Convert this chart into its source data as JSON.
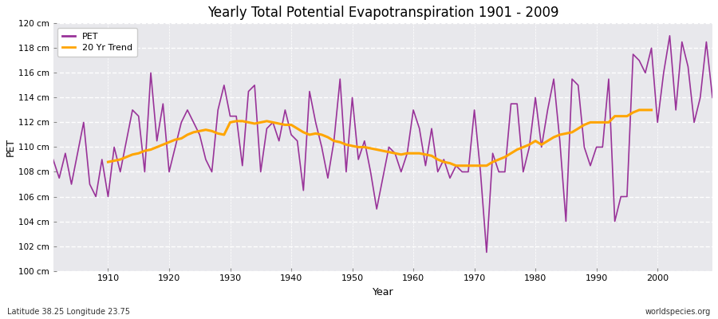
{
  "title": "Yearly Total Potential Evapotranspiration 1901 - 2009",
  "xlabel": "Year",
  "ylabel": "PET",
  "footnote_left": "Latitude 38.25 Longitude 23.75",
  "footnote_right": "worldspecies.org",
  "ylim": [
    100,
    120
  ],
  "ytick_labels": [
    "100 cm",
    "102 cm",
    "104 cm",
    "106 cm",
    "108 cm",
    "110 cm",
    "112 cm",
    "114 cm",
    "116 cm",
    "118 cm",
    "120 cm"
  ],
  "ytick_values": [
    100,
    102,
    104,
    106,
    108,
    110,
    112,
    114,
    116,
    118,
    120
  ],
  "pet_color": "#993399",
  "trend_color": "#FFA500",
  "plot_background": "#E8E8EC",
  "fig_background": "#FFFFFF",
  "years": [
    1901,
    1902,
    1903,
    1904,
    1905,
    1906,
    1907,
    1908,
    1909,
    1910,
    1911,
    1912,
    1913,
    1914,
    1915,
    1916,
    1917,
    1918,
    1919,
    1920,
    1921,
    1922,
    1923,
    1924,
    1925,
    1926,
    1927,
    1928,
    1929,
    1930,
    1931,
    1932,
    1933,
    1934,
    1935,
    1936,
    1937,
    1938,
    1939,
    1940,
    1941,
    1942,
    1943,
    1944,
    1945,
    1946,
    1947,
    1948,
    1949,
    1950,
    1951,
    1952,
    1953,
    1954,
    1955,
    1956,
    1957,
    1958,
    1959,
    1960,
    1961,
    1962,
    1963,
    1964,
    1965,
    1966,
    1967,
    1968,
    1969,
    1970,
    1971,
    1972,
    1973,
    1974,
    1975,
    1976,
    1977,
    1978,
    1979,
    1980,
    1981,
    1982,
    1983,
    1984,
    1985,
    1986,
    1987,
    1988,
    1989,
    1990,
    1991,
    1992,
    1993,
    1994,
    1995,
    1996,
    1997,
    1998,
    1999,
    2000,
    2001,
    2002,
    2003,
    2004,
    2005,
    2006,
    2007,
    2008,
    2009
  ],
  "pet_values": [
    109.0,
    107.5,
    109.5,
    107.0,
    109.5,
    112.0,
    107.0,
    106.0,
    109.0,
    106.0,
    110.0,
    108.0,
    110.5,
    113.0,
    112.5,
    108.0,
    116.0,
    110.5,
    113.5,
    108.0,
    110.0,
    112.0,
    113.0,
    112.0,
    111.0,
    109.0,
    108.0,
    113.0,
    115.0,
    112.5,
    112.5,
    108.5,
    114.5,
    115.0,
    108.0,
    111.5,
    112.0,
    110.5,
    113.0,
    111.0,
    110.5,
    106.5,
    114.5,
    112.0,
    110.0,
    107.5,
    110.5,
    115.5,
    108.0,
    114.0,
    109.0,
    110.5,
    108.0,
    105.0,
    107.5,
    110.0,
    109.5,
    108.0,
    109.5,
    113.0,
    111.5,
    108.5,
    111.5,
    108.0,
    109.0,
    107.5,
    108.5,
    108.0,
    108.0,
    113.0,
    108.0,
    101.5,
    109.5,
    108.0,
    108.0,
    113.5,
    113.5,
    108.0,
    110.0,
    114.0,
    110.0,
    113.0,
    115.5,
    110.5,
    104.0,
    115.5,
    115.0,
    110.0,
    108.5,
    110.0,
    110.0,
    115.5,
    104.0,
    106.0,
    106.0,
    117.5,
    117.0,
    116.0,
    118.0,
    112.0,
    116.0,
    119.0,
    113.0,
    118.5,
    116.5,
    112.0,
    114.0,
    118.5,
    114.0
  ],
  "trend_values": [
    null,
    null,
    null,
    null,
    null,
    null,
    null,
    null,
    null,
    108.8,
    108.9,
    109.0,
    109.2,
    109.4,
    109.5,
    109.7,
    109.8,
    110.0,
    110.2,
    110.4,
    110.6,
    110.7,
    111.0,
    111.2,
    111.3,
    111.4,
    111.3,
    111.1,
    111.0,
    112.0,
    112.1,
    112.1,
    112.0,
    111.9,
    112.0,
    112.1,
    112.0,
    111.9,
    111.8,
    111.8,
    111.5,
    111.2,
    111.0,
    111.1,
    111.0,
    110.8,
    110.5,
    110.4,
    110.2,
    110.1,
    110.0,
    110.0,
    109.9,
    109.8,
    109.7,
    109.6,
    109.5,
    109.4,
    109.5,
    109.5,
    109.5,
    109.4,
    109.3,
    109.0,
    108.8,
    108.7,
    108.5,
    108.5,
    108.5,
    108.5,
    108.5,
    108.5,
    108.8,
    109.0,
    109.2,
    109.5,
    109.8,
    110.0,
    110.2,
    110.5,
    110.2,
    110.5,
    110.8,
    111.0,
    111.1,
    111.2,
    111.5,
    111.8,
    112.0,
    112.0,
    112.0,
    112.0,
    112.5,
    112.5,
    112.5,
    112.8,
    113.0,
    113.0,
    113.0,
    null,
    null,
    null,
    null,
    null,
    null,
    null,
    null,
    null,
    null
  ]
}
